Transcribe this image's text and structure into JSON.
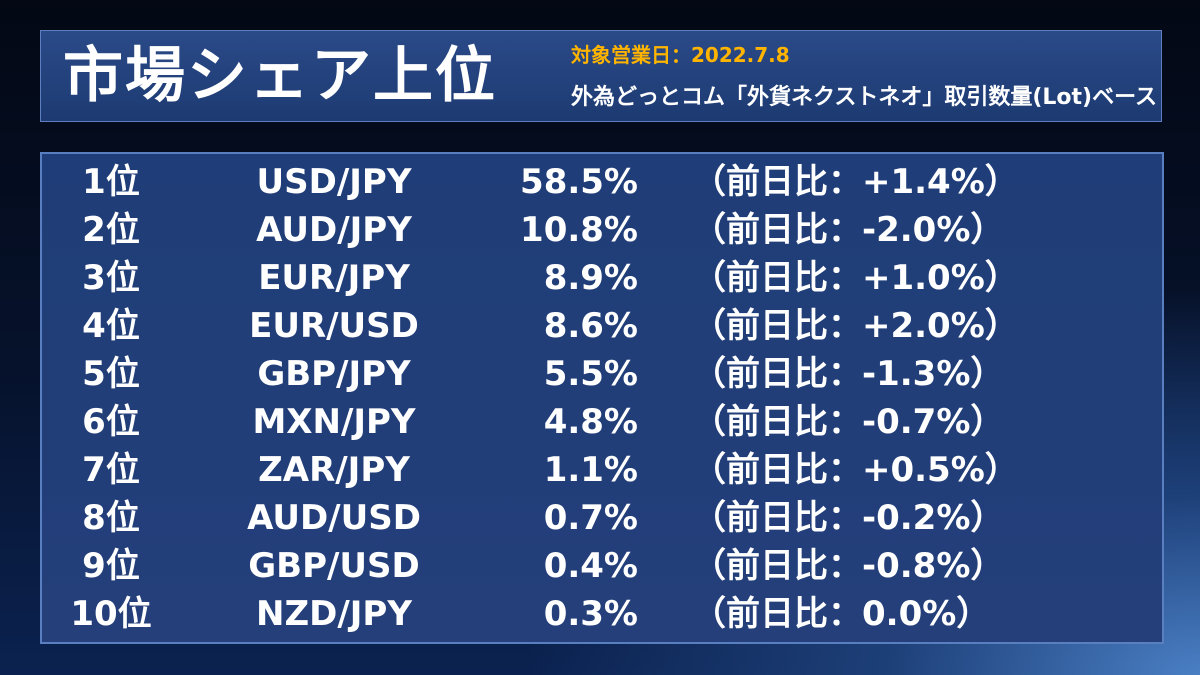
{
  "header": {
    "title": "市場シェア上位",
    "target_date": "対象営業日：2022.7.8",
    "basis": "外為どっとコム「外貨ネクストネオ」取引数量(Lot)ベース"
  },
  "rows": [
    {
      "rank": "1位",
      "pair": "USD/JPY",
      "share": "58.5%",
      "change": "（前日比：+1.4%）"
    },
    {
      "rank": "2位",
      "pair": "AUD/JPY",
      "share": "10.8%",
      "change": "（前日比：-2.0%）"
    },
    {
      "rank": "3位",
      "pair": "EUR/JPY",
      "share": "8.9%",
      "change": "（前日比：+1.0%）"
    },
    {
      "rank": "4位",
      "pair": "EUR/USD",
      "share": "8.6%",
      "change": "（前日比：+2.0%）"
    },
    {
      "rank": "5位",
      "pair": "GBP/JPY",
      "share": "5.5%",
      "change": "（前日比：-1.3%）"
    },
    {
      "rank": "6位",
      "pair": "MXN/JPY",
      "share": "4.8%",
      "change": "（前日比：-0.7%）"
    },
    {
      "rank": "7位",
      "pair": "ZAR/JPY",
      "share": "1.1%",
      "change": "（前日比：+0.5%）"
    },
    {
      "rank": "8位",
      "pair": "AUD/USD",
      "share": "0.7%",
      "change": "（前日比：-0.2%）"
    },
    {
      "rank": "9位",
      "pair": "GBP/USD",
      "share": "0.4%",
      "change": "（前日比：-0.8%）"
    },
    {
      "rank": "10位",
      "pair": "NZD/JPY",
      "share": "0.3%",
      "change": "（前日比：0.0%）"
    }
  ]
}
